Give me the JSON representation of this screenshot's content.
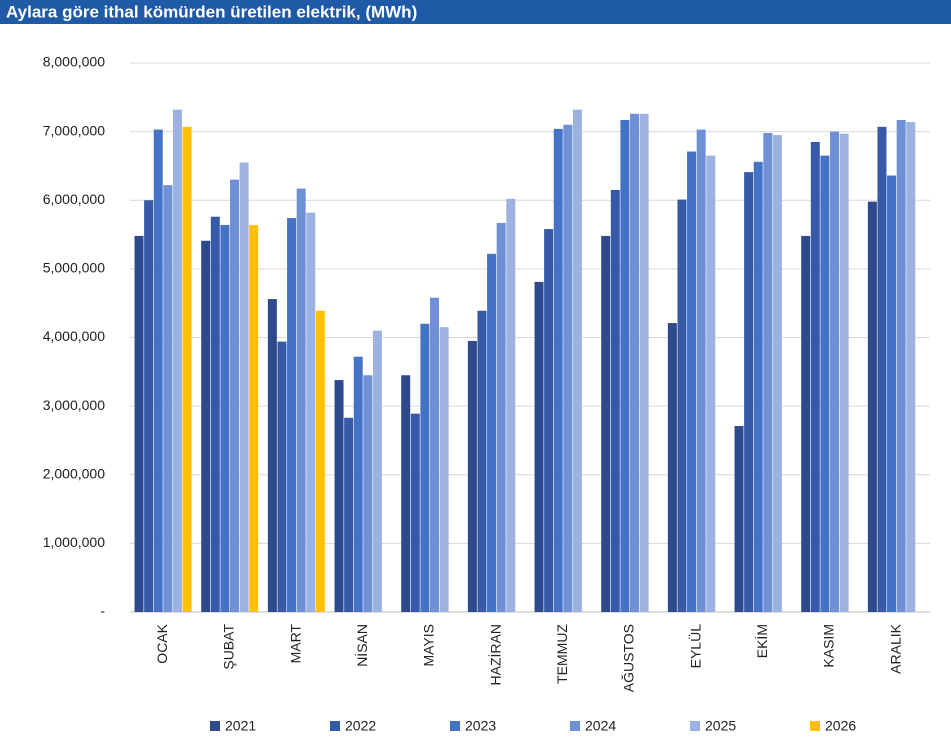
{
  "chart_data": {
    "type": "bar",
    "title": "Aylara göre ithal kömürden üretilen elektrik, (MWh)",
    "categories": [
      "OCAK",
      "ŞUBAT",
      "MART",
      "NİSAN",
      "MAYIS",
      "HAZİRAN",
      "TEMMUZ",
      "AĞUSTOS",
      "EYLÜL",
      "EKİM",
      "KASIM",
      "ARALIK"
    ],
    "series": [
      {
        "name": "2021",
        "color": "#2f4a8c",
        "values": [
          5480000,
          5410000,
          4560000,
          3380000,
          3450000,
          3950000,
          4810000,
          5480000,
          4210000,
          2710000,
          5480000,
          5980000
        ]
      },
      {
        "name": "2022",
        "color": "#3659a8",
        "values": [
          6000000,
          5760000,
          3940000,
          2830000,
          2890000,
          4390000,
          5580000,
          6150000,
          6010000,
          6410000,
          6850000,
          7070000
        ]
      },
      {
        "name": "2023",
        "color": "#4472c4",
        "values": [
          7030000,
          5640000,
          5740000,
          3720000,
          4200000,
          5220000,
          7040000,
          7170000,
          6710000,
          6560000,
          6650000,
          6360000
        ]
      },
      {
        "name": "2024",
        "color": "#6f8fd6",
        "values": [
          6220000,
          6300000,
          6170000,
          3450000,
          4580000,
          5670000,
          7100000,
          7260000,
          7030000,
          6980000,
          7000000,
          7170000
        ]
      },
      {
        "name": "2025",
        "color": "#9eb2e2",
        "values": [
          7320000,
          6550000,
          5820000,
          4100000,
          4150000,
          6020000,
          7320000,
          7260000,
          6650000,
          6950000,
          6970000,
          7140000
        ]
      },
      {
        "name": "2026",
        "color": "#ffc000",
        "values": [
          7070000,
          5640000,
          4390000,
          null,
          null,
          null,
          null,
          null,
          null,
          null,
          null,
          null
        ]
      }
    ],
    "ylim": [
      0,
      8000000
    ],
    "yticks": [
      {
        "value": 0,
        "label": "-"
      },
      {
        "value": 1000000,
        "label": "1,000,000"
      },
      {
        "value": 2000000,
        "label": "2,000,000"
      },
      {
        "value": 3000000,
        "label": "3,000,000"
      },
      {
        "value": 4000000,
        "label": "4,000,000"
      },
      {
        "value": 5000000,
        "label": "5,000,000"
      },
      {
        "value": 6000000,
        "label": "6,000,000"
      },
      {
        "value": 7000000,
        "label": "7,000,000"
      },
      {
        "value": 8000000,
        "label": "8,000,000"
      }
    ],
    "grid": true,
    "legend": "bottom"
  }
}
